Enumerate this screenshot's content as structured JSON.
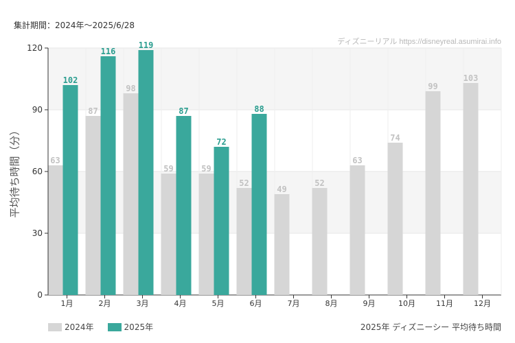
{
  "header": {
    "period": "集計期間：2024年～2025/6/28",
    "watermark": "ディズニーリアル https://disneyreal.asumirai.info"
  },
  "footer": {
    "caption": "2025年 ディズニーシー 平均待ち時間"
  },
  "colors": {
    "series_2024": "#d6d6d6",
    "series_2025": "#3aa89c",
    "label_2024": "#c2c2c2",
    "label_2025": "#2a9d8f",
    "band": "#f5f5f5"
  },
  "chart_data": {
    "type": "bar",
    "title": "2025年 ディズニーシー 平均待ち時間",
    "xlabel": "",
    "ylabel": "平均待ち時間（分）",
    "ylim": [
      0,
      120
    ],
    "yticks": [
      0,
      30,
      60,
      90,
      120
    ],
    "categories": [
      "1月",
      "2月",
      "3月",
      "4月",
      "5月",
      "6月",
      "7月",
      "8月",
      "9月",
      "10月",
      "11月",
      "12月"
    ],
    "series": [
      {
        "name": "2024年",
        "values": [
          63,
          87,
          98,
          59,
          59,
          52,
          49,
          52,
          63,
          74,
          99,
          103
        ]
      },
      {
        "name": "2025年",
        "values": [
          102,
          116,
          119,
          87,
          72,
          88,
          null,
          null,
          null,
          null,
          null,
          null
        ]
      }
    ],
    "legend": "bottom-left",
    "grid": true
  }
}
